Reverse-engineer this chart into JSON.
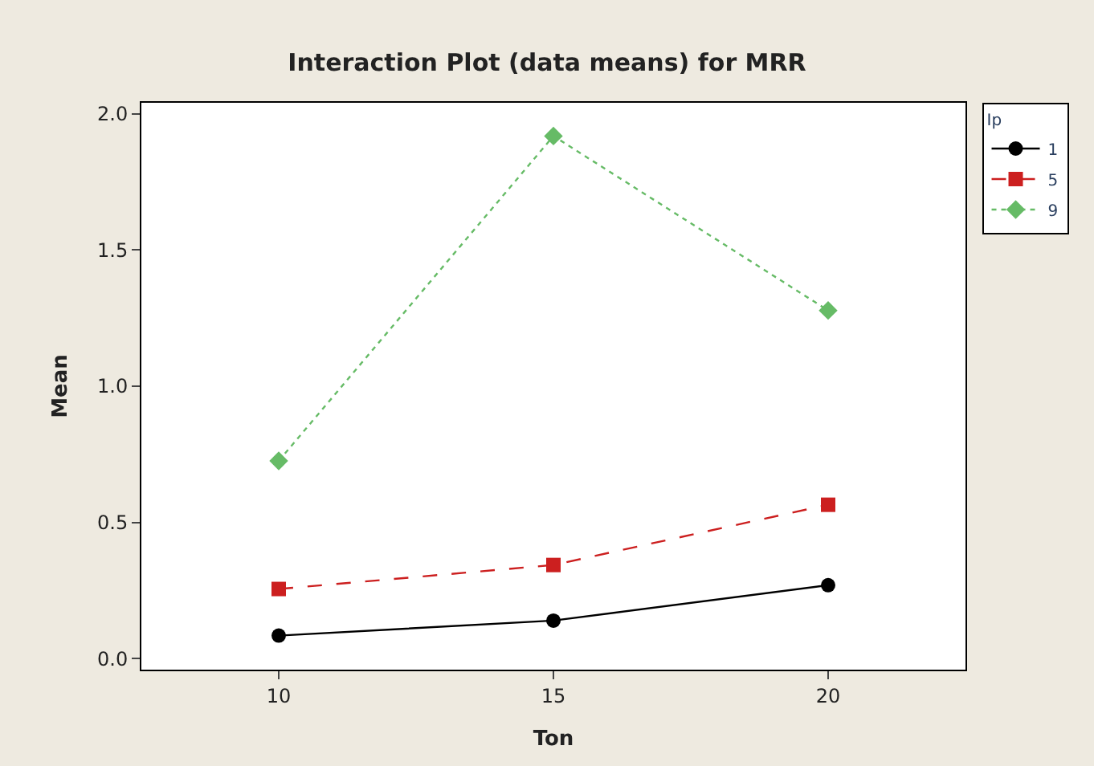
{
  "chart_data": {
    "type": "line",
    "title": "Interaction Plot (data means) for MRR",
    "xlabel": "Ton",
    "ylabel": "Mean",
    "legend_title": "Ip",
    "legend": "top right",
    "x": [
      10,
      15,
      20
    ],
    "xlim": [
      7.5,
      22.5
    ],
    "xticks": [
      10,
      15,
      20
    ],
    "ylim": [
      -0.04,
      2.04
    ],
    "yticks": [
      {
        "value": 0,
        "label": "0.0"
      },
      0.5,
      {
        "value": 1,
        "label": "1.0"
      },
      1.5,
      {
        "value": 2,
        "label": "2.0"
      }
    ],
    "series": [
      {
        "name": "1",
        "color": "#000000",
        "values": [
          0.085,
          0.14,
          0.27
        ],
        "marker": "circle",
        "line_style": "solid"
      },
      {
        "name": "5",
        "color": "#cc1f1f",
        "values": [
          0.256,
          0.344,
          0.565
        ],
        "marker": "square",
        "line_style": "dashed"
      },
      {
        "name": "9",
        "color": "#66bb66",
        "values": [
          0.726,
          1.918,
          1.278
        ],
        "marker": "diamond",
        "line_style": "dotted"
      }
    ]
  }
}
